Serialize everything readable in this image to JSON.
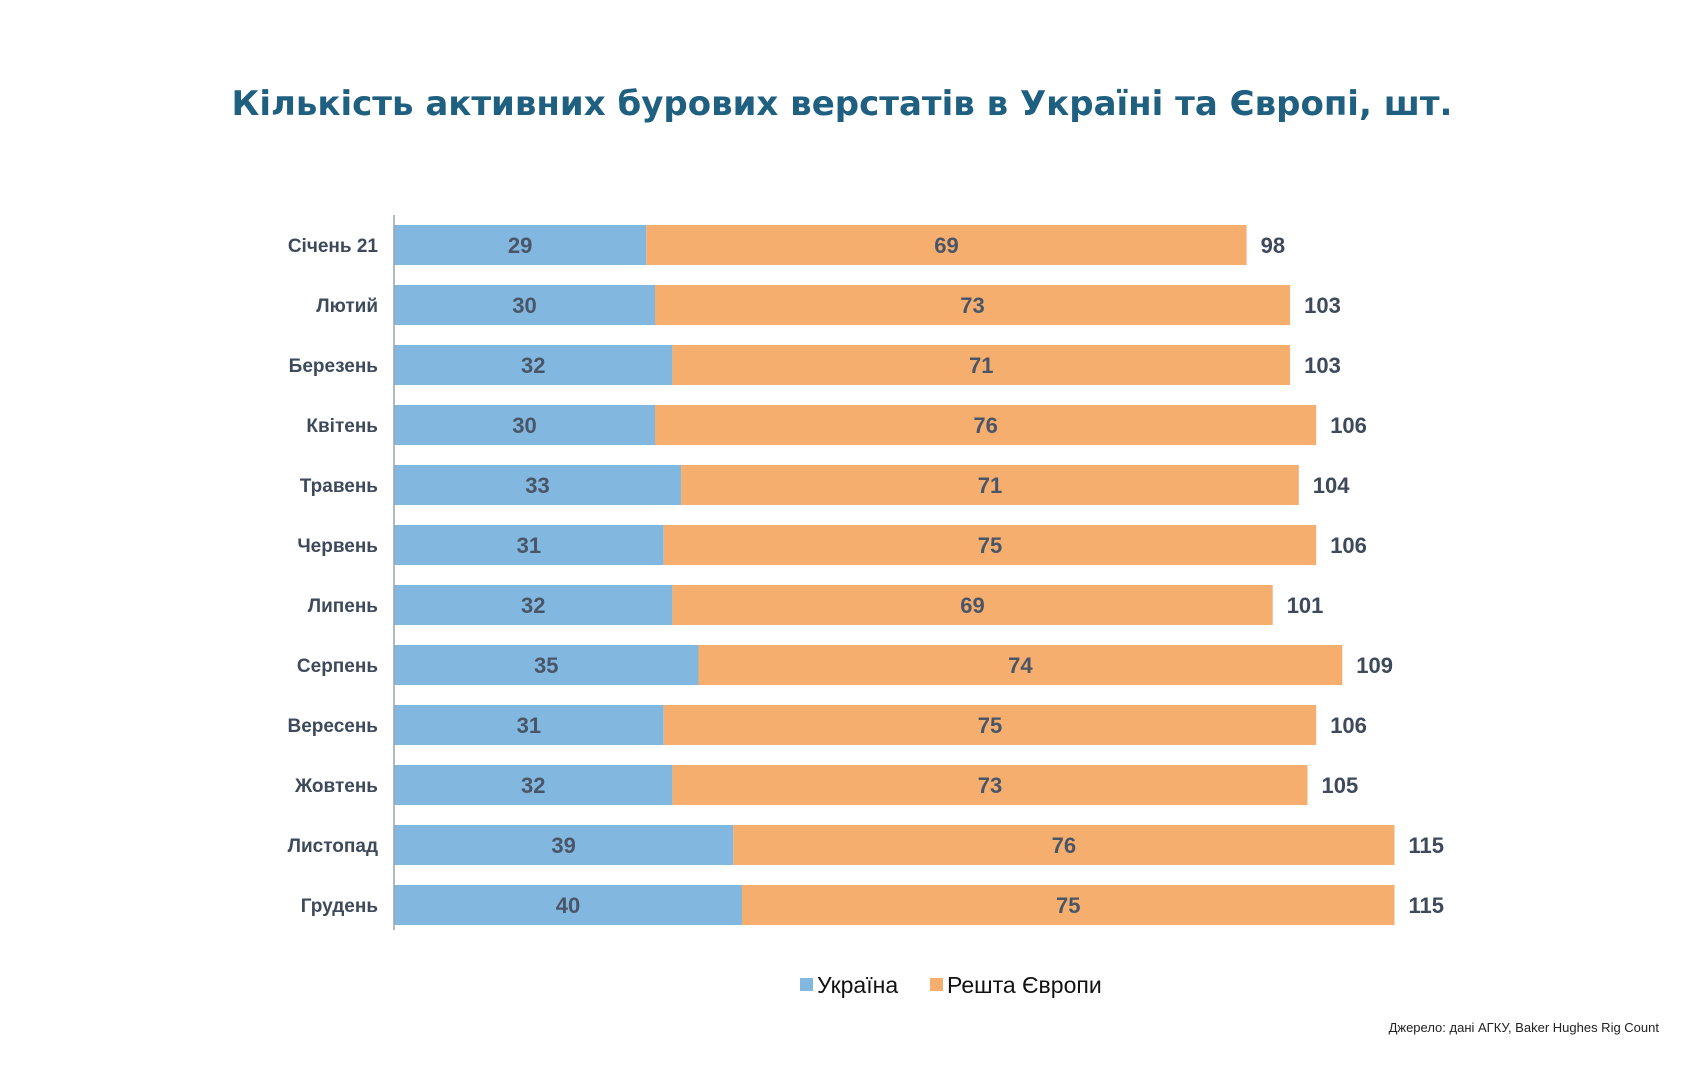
{
  "chart_data": {
    "type": "bar",
    "orientation": "horizontal",
    "stacked": true,
    "title": "Кількість активних бурових верстатів в Україні та Європі, шт.",
    "categories": [
      "Січень 21",
      "Лютий",
      "Березень",
      "Квітень",
      "Травень",
      "Червень",
      "Липень",
      "Серпень",
      "Вересень",
      "Жовтень",
      "Листопад",
      "Грудень"
    ],
    "series": [
      {
        "name": "Україна",
        "color": "#82b8df",
        "values": [
          29,
          30,
          32,
          30,
          33,
          31,
          32,
          35,
          31,
          32,
          39,
          40
        ]
      },
      {
        "name": "Решта Європи",
        "color": "#f6ae6e",
        "values": [
          69,
          73,
          71,
          76,
          71,
          75,
          69,
          74,
          75,
          73,
          76,
          75
        ]
      }
    ],
    "totals": [
      98,
      103,
      103,
      106,
      104,
      106,
      101,
      109,
      106,
      105,
      115,
      115
    ],
    "xlim": [
      0,
      115
    ],
    "grid": false,
    "legend_position": "bottom"
  },
  "source": "Джерело: дані АГКУ, Baker Hughes Rig Count"
}
